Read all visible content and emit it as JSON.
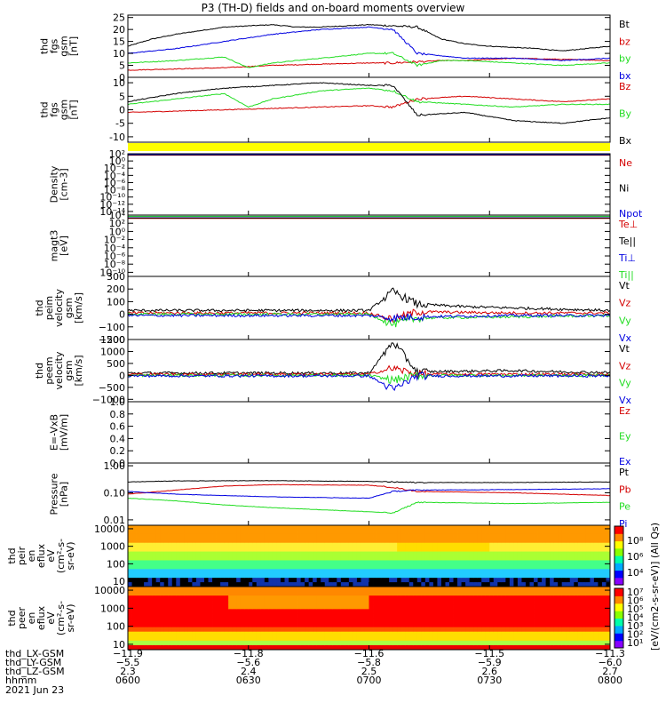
{
  "title": "P3 (TH-D) fields and on-board moments overview",
  "colors": {
    "black": "#000000",
    "red": "#d40000",
    "green": "#22dd22",
    "blue": "#0000e0",
    "yellow": "#ffff00"
  },
  "chart_data": [
    {
      "type": "line",
      "id": "fgs_mag",
      "ylabel": [
        "thd",
        "fgs",
        "gsm",
        "[nT]"
      ],
      "ylim": [
        0,
        26
      ],
      "yticks": [
        "0",
        "5",
        "10",
        "15",
        "20",
        "25"
      ],
      "ytick_values": [
        0,
        5,
        10,
        15,
        20,
        25
      ],
      "series": [
        {
          "name": "Bt",
          "color": "black",
          "x": [
            0,
            0.05,
            0.1,
            0.15,
            0.2,
            0.25,
            0.3,
            0.35,
            0.4,
            0.45,
            0.5,
            0.55,
            0.6,
            0.65,
            0.7,
            0.75,
            0.8,
            0.85,
            0.9,
            0.95,
            1
          ],
          "values": [
            13,
            16,
            18,
            19.5,
            21,
            21.5,
            22,
            21,
            21,
            21.5,
            22,
            21.5,
            21,
            16,
            14,
            13,
            12.5,
            12,
            11,
            12,
            13
          ]
        },
        {
          "name": "bz",
          "color": "red",
          "x": [
            0,
            0.1,
            0.2,
            0.25,
            0.3,
            0.4,
            0.5,
            0.55,
            0.6,
            0.65,
            0.7,
            0.8,
            0.9,
            1
          ],
          "values": [
            3,
            3.5,
            4,
            4.5,
            5,
            5.5,
            6,
            6,
            6.5,
            7,
            7,
            8,
            7.5,
            7
          ]
        },
        {
          "name": "by",
          "color": "green",
          "x": [
            0,
            0.1,
            0.2,
            0.25,
            0.3,
            0.4,
            0.5,
            0.55,
            0.6,
            0.65,
            0.7,
            0.8,
            0.9,
            1
          ],
          "values": [
            6,
            7,
            8.5,
            4,
            6,
            8,
            10,
            10,
            5,
            7,
            7,
            6,
            5,
            6
          ]
        },
        {
          "name": "bx",
          "color": "blue",
          "x": [
            0,
            0.1,
            0.2,
            0.3,
            0.4,
            0.5,
            0.55,
            0.6,
            0.65,
            0.7,
            0.8,
            0.9,
            1
          ],
          "values": [
            10,
            12,
            15,
            18,
            20,
            21,
            20,
            10,
            9,
            8,
            8,
            7,
            8
          ]
        }
      ]
    },
    {
      "type": "line",
      "id": "fgs_comp",
      "ylabel": [
        "thd",
        "fgs",
        "gsm",
        "[nT]"
      ],
      "ylim": [
        -12,
        12
      ],
      "yticks": [
        "-10",
        "-5",
        "0",
        "5",
        "10"
      ],
      "ytick_values": [
        -10,
        -5,
        0,
        5,
        10
      ],
      "series": [
        {
          "name": "Bz",
          "color": "red",
          "x": [
            0,
            0.1,
            0.2,
            0.3,
            0.4,
            0.5,
            0.55,
            0.6,
            0.7,
            0.8,
            0.9,
            1
          ],
          "values": [
            -1,
            -0.5,
            0,
            0.5,
            1,
            1.5,
            1,
            4,
            5,
            4,
            3,
            4
          ]
        },
        {
          "name": "By",
          "color": "green",
          "x": [
            0,
            0.1,
            0.2,
            0.25,
            0.3,
            0.4,
            0.5,
            0.55,
            0.6,
            0.7,
            0.8,
            0.9,
            1
          ],
          "values": [
            2,
            4,
            6,
            1,
            4,
            7,
            8,
            7,
            3,
            2,
            1,
            2,
            2
          ]
        },
        {
          "name": "Bx",
          "color": "black",
          "x": [
            0,
            0.1,
            0.2,
            0.3,
            0.4,
            0.5,
            0.55,
            0.6,
            0.7,
            0.8,
            0.9,
            1
          ],
          "values": [
            3,
            6,
            8,
            9,
            10,
            9,
            9,
            -2,
            -1,
            -4,
            -5,
            -3
          ]
        }
      ]
    },
    {
      "type": "line",
      "id": "density",
      "ylabel": [
        "Density",
        "[cm-3]"
      ],
      "log": true,
      "ylim": [
        -15,
        2
      ],
      "yticks": [
        "10²",
        "10⁰",
        "10⁻²",
        "10⁻⁴",
        "10⁻⁶",
        "10⁻⁸",
        "10⁻¹⁰",
        "10⁻¹²",
        "10⁻¹⁴"
      ],
      "ytick_values": [
        2,
        0,
        -2,
        -4,
        -6,
        -8,
        -10,
        -12,
        -14
      ],
      "series": [
        {
          "name": "Ne",
          "color": "red",
          "x": [
            0,
            1
          ],
          "values": [
            1.6,
            1.6
          ]
        },
        {
          "name": "Ni",
          "color": "black",
          "x": [
            0,
            1
          ],
          "values": [
            1.7,
            1.7
          ]
        },
        {
          "name": "Npot",
          "color": "blue",
          "x": [
            0,
            1
          ],
          "values": [
            1.8,
            1.8
          ]
        }
      ]
    },
    {
      "type": "line",
      "id": "temperature",
      "ylabel": [
        "magt3",
        "[eV]"
      ],
      "log": true,
      "ylim": [
        -11,
        4
      ],
      "yticks": [
        "10⁴",
        "10²",
        "10⁰",
        "10⁻²",
        "10⁻⁴",
        "10⁻⁶",
        "10⁻⁸",
        "10⁻¹⁰"
      ],
      "ytick_values": [
        4,
        2,
        0,
        -2,
        -4,
        -6,
        -8,
        -10
      ],
      "series": [
        {
          "name": "Te⊥",
          "color": "red",
          "x": [
            0,
            1
          ],
          "values": [
            3.2,
            3.2
          ]
        },
        {
          "name": "Te||",
          "color": "black",
          "x": [
            0,
            1
          ],
          "values": [
            3.3,
            3.3
          ]
        },
        {
          "name": "Ti⊥",
          "color": "blue",
          "x": [
            0,
            1
          ],
          "values": [
            3.6,
            3.6
          ]
        },
        {
          "name": "Ti||",
          "color": "green",
          "x": [
            0,
            1
          ],
          "values": [
            3.7,
            3.7
          ]
        }
      ]
    },
    {
      "type": "line",
      "id": "peim_velocity",
      "ylabel": [
        "thd",
        "peim",
        "velocity",
        "gsm",
        "[km/s]"
      ],
      "ylim": [
        -200,
        300
      ],
      "yticks": [
        "−200",
        "−100",
        "0",
        "100",
        "200",
        "300"
      ],
      "ytick_values": [
        -200,
        -100,
        0,
        100,
        200,
        300
      ],
      "series": [
        {
          "name": "Vt",
          "color": "black",
          "x": [
            0,
            0.2,
            0.5,
            0.55,
            0.6,
            0.7,
            0.8,
            0.9,
            1
          ],
          "values": [
            30,
            30,
            30,
            180,
            80,
            60,
            50,
            40,
            30
          ]
        },
        {
          "name": "Vz",
          "color": "red",
          "x": [
            0,
            0.5,
            0.55,
            0.6,
            0.8,
            1
          ],
          "values": [
            10,
            10,
            -40,
            20,
            10,
            10
          ]
        },
        {
          "name": "Vy",
          "color": "green",
          "x": [
            0,
            0.5,
            0.55,
            0.6,
            0.8,
            1
          ],
          "values": [
            0,
            0,
            -80,
            -30,
            -20,
            -10
          ]
        },
        {
          "name": "Vx",
          "color": "blue",
          "x": [
            0,
            0.5,
            0.55,
            0.6,
            0.8,
            1
          ],
          "values": [
            -10,
            -10,
            -30,
            -20,
            -10,
            -10
          ]
        }
      ]
    },
    {
      "type": "line",
      "id": "peem_velocity",
      "ylabel": [
        "thd",
        "peem",
        "velocity",
        "gsm",
        "[km/s]"
      ],
      "ylim": [
        -1100,
        1500
      ],
      "yticks": [
        "−1000",
        "−500",
        "0",
        "500",
        "1000",
        "1500"
      ],
      "ytick_values": [
        -1000,
        -500,
        0,
        500,
        1000,
        1500
      ],
      "series": [
        {
          "name": "Vt",
          "color": "black",
          "x": [
            0,
            0.2,
            0.5,
            0.55,
            0.6,
            0.8,
            0.9,
            1
          ],
          "values": [
            100,
            100,
            100,
            1400,
            150,
            200,
            150,
            120
          ]
        },
        {
          "name": "Vz",
          "color": "red",
          "x": [
            0,
            0.5,
            0.55,
            0.6,
            1
          ],
          "values": [
            50,
            50,
            300,
            50,
            50
          ]
        },
        {
          "name": "Vy",
          "color": "green",
          "x": [
            0,
            0.5,
            0.55,
            0.6,
            1
          ],
          "values": [
            0,
            0,
            -200,
            0,
            0
          ]
        },
        {
          "name": "Vx",
          "color": "blue",
          "x": [
            0,
            0.5,
            0.55,
            0.6,
            1
          ],
          "values": [
            -20,
            -20,
            -600,
            -20,
            -20
          ]
        }
      ]
    },
    {
      "type": "line",
      "id": "efield",
      "ylabel": [
        "E=-VxB",
        "[mV/m]"
      ],
      "ylim": [
        0,
        1
      ],
      "yticks": [
        "0.0",
        "0.2",
        "0.4",
        "0.6",
        "0.8",
        "1.0"
      ],
      "ytick_values": [
        0,
        0.2,
        0.4,
        0.6,
        0.8,
        1.0
      ],
      "series": [
        {
          "name": "Ez",
          "color": "red",
          "x": [],
          "values": []
        },
        {
          "name": "Ey",
          "color": "green",
          "x": [],
          "values": []
        },
        {
          "name": "Ex",
          "color": "blue",
          "x": [],
          "values": []
        }
      ]
    },
    {
      "type": "line",
      "id": "pressure",
      "ylabel": [
        "Pressure",
        "[nPa]"
      ],
      "log": true,
      "ylim": [
        -2.2,
        0.1
      ],
      "yticks": [
        "1.00",
        "0.10",
        "0.01"
      ],
      "ytick_values": [
        0,
        -1,
        -2
      ],
      "series": [
        {
          "name": "Pt",
          "color": "black",
          "x": [
            0,
            0.1,
            0.3,
            0.5,
            0.55,
            0.6,
            0.8,
            1
          ],
          "values": [
            -0.6,
            -0.56,
            -0.55,
            -0.58,
            -0.6,
            -0.62,
            -0.62,
            -0.6
          ]
        },
        {
          "name": "Pb",
          "color": "red",
          "x": [
            0,
            0.1,
            0.2,
            0.3,
            0.5,
            0.55,
            0.6,
            0.8,
            1
          ],
          "values": [
            -1.05,
            -0.9,
            -0.75,
            -0.7,
            -0.72,
            -0.8,
            -0.95,
            -1.0,
            -1.1
          ]
        },
        {
          "name": "Pe",
          "color": "green",
          "x": [
            0,
            0.1,
            0.2,
            0.3,
            0.5,
            0.55,
            0.6,
            0.8,
            1
          ],
          "values": [
            -1.2,
            -1.3,
            -1.45,
            -1.55,
            -1.7,
            -1.75,
            -1.35,
            -1.4,
            -1.35
          ]
        },
        {
          "name": "Pi",
          "color": "blue",
          "x": [
            0,
            0.1,
            0.3,
            0.5,
            0.55,
            0.6,
            0.8,
            1
          ],
          "values": [
            -0.95,
            -1.05,
            -1.15,
            -1.2,
            -0.95,
            -0.9,
            -0.88,
            -0.85
          ]
        }
      ]
    },
    {
      "type": "heatmap",
      "id": "peir_spec",
      "ylabel": [
        "thd",
        "peir",
        "en",
        "eflux",
        "eV",
        "(cm²-s-",
        "sr-eV)"
      ],
      "log": true,
      "ylim": [
        0.7,
        4.2
      ],
      "yticks": [
        "10000",
        "1000",
        "100",
        "10"
      ],
      "ytick_values": [
        4,
        3,
        2,
        1
      ]
    },
    {
      "type": "heatmap",
      "id": "peer_spec",
      "ylabel": [
        "thd",
        "peer",
        "en",
        "eflux",
        "eV",
        "(cm²-s-",
        "sr-eV)"
      ],
      "log": true,
      "ylim": [
        0.7,
        4.2
      ],
      "yticks": [
        "10000",
        "1000",
        "100",
        "10"
      ],
      "ytick_values": [
        4,
        3,
        2,
        1
      ]
    }
  ],
  "colorbar": {
    "label": "[eV/(cm2-s-sr-eV)] (All Qs)",
    "ticks_upper": [
      "10⁸",
      "10⁶",
      "10⁴"
    ],
    "ticks_lower": [
      "10⁷",
      "10⁶",
      "10⁵",
      "10⁴",
      "10³",
      "10²",
      "10¹"
    ]
  },
  "time_axis": {
    "rows": [
      {
        "label": "thd_LX-GSM",
        "values": [
          "−11.9",
          "−11.8",
          "−11.6",
          "−11.5",
          "−11.3"
        ]
      },
      {
        "label": "thd_LY-GSM",
        "values": [
          "−5.5",
          "−5.6",
          "−5.8",
          "−5.9",
          "−6.0"
        ]
      },
      {
        "label": "thd_LZ-GSM",
        "values": [
          "2.3",
          "2.4",
          "2.5",
          "2.6",
          "2.7"
        ]
      },
      {
        "label": "hhmm",
        "values": [
          "0600",
          "0630",
          "0700",
          "0730",
          "0800"
        ]
      }
    ],
    "date": "2021 Jun 23"
  }
}
